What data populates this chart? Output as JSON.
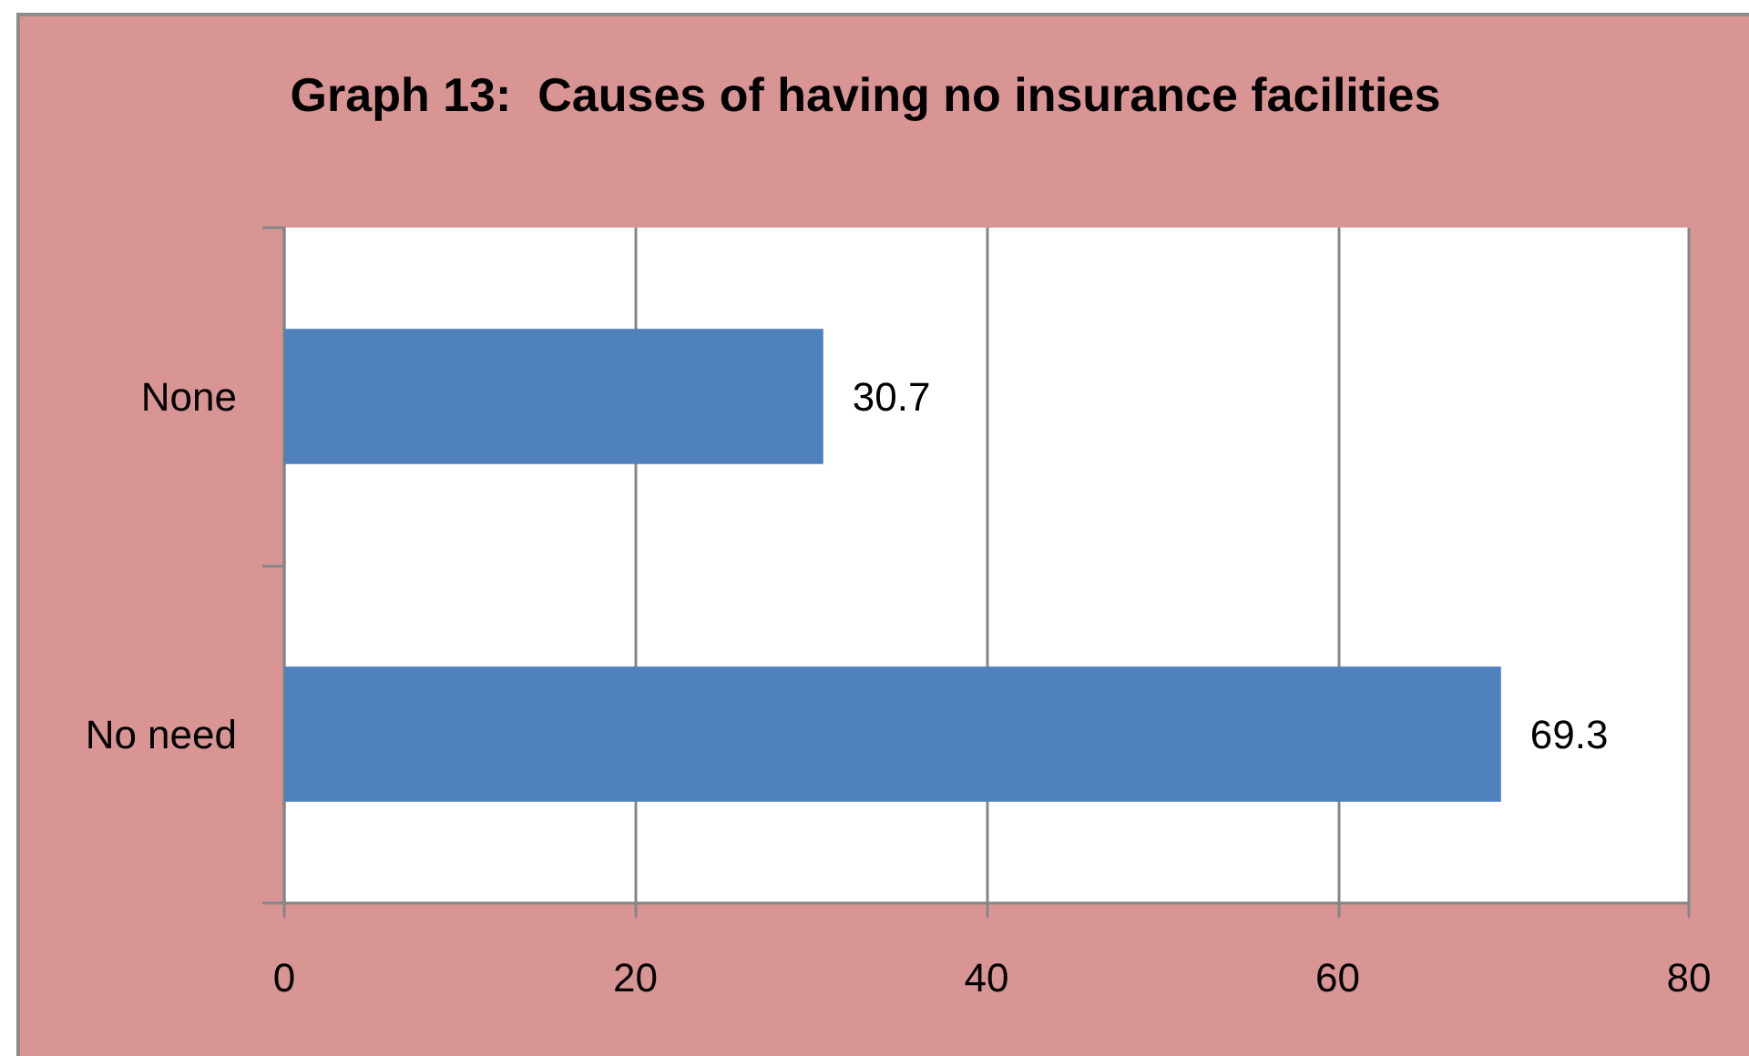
{
  "chart_data": {
    "type": "bar",
    "orientation": "horizontal",
    "title": "Graph 13:  Causes of having no insurance facilities",
    "categories": [
      "None",
      "No need"
    ],
    "values": [
      30.7,
      69.3
    ],
    "color": "#4f81bd",
    "xlim": [
      0,
      80
    ],
    "xticks": [
      0,
      20,
      40,
      60,
      80
    ],
    "grid": "x",
    "data_labels": true
  }
}
